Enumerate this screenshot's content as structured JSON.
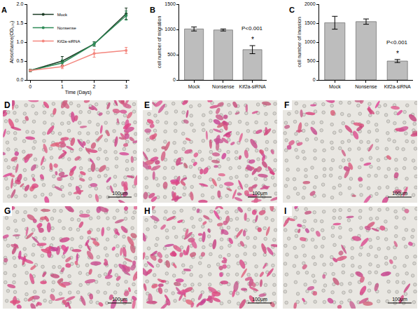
{
  "chart_data": [
    {
      "panel": "A",
      "type": "line",
      "x": [
        0,
        1,
        2,
        3
      ],
      "xlabel": "Time (Days)",
      "ylabel": "Absorbance(OD₅₇₀)",
      "xlim": [
        -0.1,
        3.1
      ],
      "xticks": [
        0,
        1,
        2,
        3
      ],
      "ylim": [
        0,
        2
      ],
      "yticks": [
        {
          "value": 0,
          "label": "0.0"
        },
        {
          "value": 0.5,
          "label": "0.5"
        },
        {
          "value": 1,
          "label": "1.0"
        },
        {
          "value": 1.5,
          "label": "1.5"
        },
        {
          "value": 2,
          "label": "2.0"
        }
      ],
      "legend": "upper left",
      "marker": "circle",
      "grid": false,
      "series": [
        {
          "name": "Mock",
          "color": "#1b3b24",
          "values": [
            0.25,
            0.5,
            0.95,
            1.75
          ],
          "errors": [
            0.03,
            0.12,
            0.06,
            0.15
          ]
        },
        {
          "name": "Nonsense",
          "color": "#2e8b57",
          "values": [
            0.25,
            0.45,
            0.95,
            1.7
          ],
          "errors": [
            0.03,
            0.08,
            0.05,
            0.12
          ]
        },
        {
          "name": "Kif2a-siRNA",
          "color": "#f4877f",
          "values": [
            0.25,
            0.35,
            0.7,
            0.78
          ],
          "errors": [
            0.02,
            0.05,
            0.1,
            0.08
          ]
        }
      ]
    },
    {
      "panel": "B",
      "type": "bar",
      "categories": [
        "Mock",
        "Nonsense",
        "Kif2a-siRNA"
      ],
      "values": [
        1010,
        990,
        600
      ],
      "errors": [
        40,
        20,
        80
      ],
      "color": "#bdbdbd",
      "ylabel": "cell number of migration",
      "ylim": [
        0,
        1500
      ],
      "yticks": [
        0,
        500,
        1000,
        1500
      ],
      "grid": false,
      "annotations": [
        {
          "category": "Kif2a-siRNA",
          "text": "P<0.001"
        },
        {
          "category": "Kif2a-siRNA",
          "text": "*"
        }
      ]
    },
    {
      "panel": "C",
      "type": "bar",
      "categories": [
        "Mock",
        "Nonsense",
        "Kif2a-siRNA"
      ],
      "values": [
        1510,
        1540,
        500
      ],
      "errors": [
        170,
        70,
        40
      ],
      "color": "#bdbdbd",
      "ylabel": "cell number of invasion",
      "ylim": [
        0,
        2000
      ],
      "yticks": [
        0,
        500,
        1000,
        1500,
        2000
      ],
      "grid": false,
      "annotations": [
        {
          "category": "Kif2a-siRNA",
          "text": "P<0.001"
        },
        {
          "category": "Kif2a-siRNA",
          "text": "*"
        }
      ]
    }
  ],
  "micrographs": [
    {
      "label": "D",
      "scale_bar": "100μm"
    },
    {
      "label": "E",
      "scale_bar": "100μm"
    },
    {
      "label": "F",
      "scale_bar": "100μm"
    },
    {
      "label": "G",
      "scale_bar": "100μm"
    },
    {
      "label": "H",
      "scale_bar": "100μm"
    },
    {
      "label": "I",
      "scale_bar": "100μm"
    }
  ]
}
